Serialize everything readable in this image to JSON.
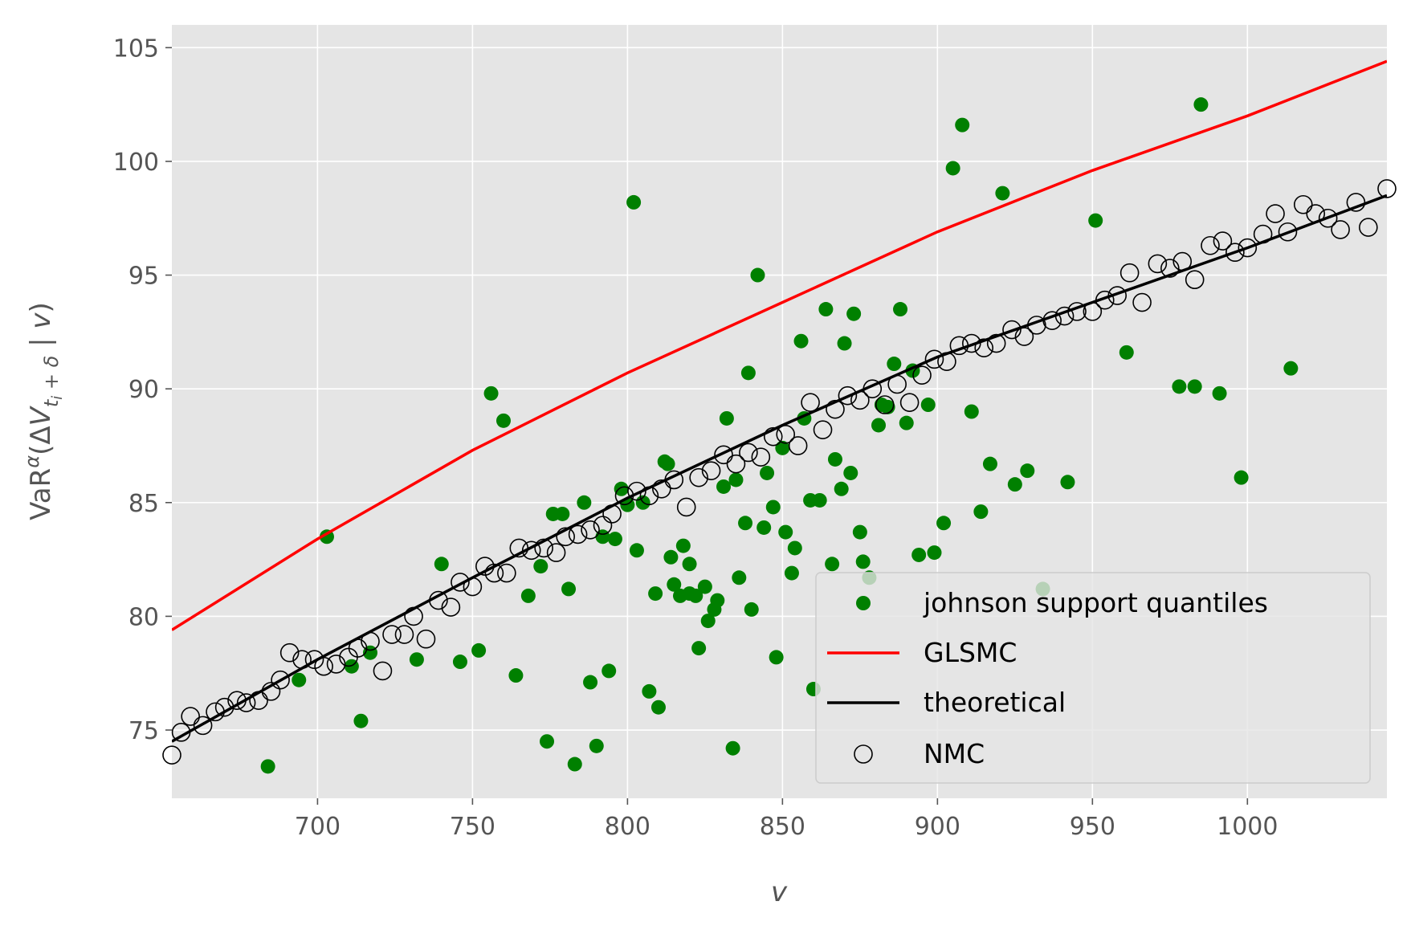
{
  "chart_data": {
    "type": "scatter",
    "xlabel": "v",
    "ylabel": "VaR^α(ΔV_{t_i+δ} | v)",
    "xlim": [
      653,
      1045
    ],
    "ylim": [
      72,
      106
    ],
    "xticks": [
      700,
      750,
      800,
      850,
      900,
      950,
      1000
    ],
    "yticks": [
      75,
      80,
      85,
      90,
      95,
      100,
      105
    ],
    "grid": true,
    "legend_position": "lower-right",
    "colors": {
      "background": "#e5e5e5",
      "johnson": "#008000",
      "glsmc": "#ff0000",
      "theoretical": "#000000",
      "nmc": "#000000"
    },
    "series": [
      {
        "name": "johnson support quantiles",
        "kind": "scatter-filled",
        "points": [
          [
            684,
            73.4
          ],
          [
            694,
            77.2
          ],
          [
            703,
            83.5
          ],
          [
            711,
            77.8
          ],
          [
            714,
            75.4
          ],
          [
            717,
            78.4
          ],
          [
            732,
            78.1
          ],
          [
            740,
            82.3
          ],
          [
            746,
            78.0
          ],
          [
            752,
            78.5
          ],
          [
            756,
            89.8
          ],
          [
            760,
            88.6
          ],
          [
            764,
            77.4
          ],
          [
            768,
            80.9
          ],
          [
            772,
            82.2
          ],
          [
            774,
            74.5
          ],
          [
            776,
            84.5
          ],
          [
            779,
            84.5
          ],
          [
            781,
            81.2
          ],
          [
            783,
            73.5
          ],
          [
            786,
            85.0
          ],
          [
            788,
            77.1
          ],
          [
            790,
            74.3
          ],
          [
            792,
            83.5
          ],
          [
            794,
            77.6
          ],
          [
            796,
            83.4
          ],
          [
            798,
            85.6
          ],
          [
            800,
            84.9
          ],
          [
            802,
            98.2
          ],
          [
            803,
            82.9
          ],
          [
            805,
            85.0
          ],
          [
            807,
            76.7
          ],
          [
            809,
            81.0
          ],
          [
            810,
            76.0
          ],
          [
            812,
            86.8
          ],
          [
            813,
            86.7
          ],
          [
            814,
            82.6
          ],
          [
            815,
            81.4
          ],
          [
            817,
            80.9
          ],
          [
            818,
            83.1
          ],
          [
            820,
            82.3
          ],
          [
            820,
            81.0
          ],
          [
            822,
            80.9
          ],
          [
            823,
            78.6
          ],
          [
            825,
            81.3
          ],
          [
            826,
            79.8
          ],
          [
            828,
            80.3
          ],
          [
            829,
            80.7
          ],
          [
            831,
            85.7
          ],
          [
            832,
            88.7
          ],
          [
            834,
            74.2
          ],
          [
            835,
            86.0
          ],
          [
            836,
            81.7
          ],
          [
            838,
            84.1
          ],
          [
            839,
            90.7
          ],
          [
            840,
            80.3
          ],
          [
            842,
            95.0
          ],
          [
            844,
            83.9
          ],
          [
            845,
            86.3
          ],
          [
            847,
            84.8
          ],
          [
            848,
            78.2
          ],
          [
            850,
            87.4
          ],
          [
            851,
            83.7
          ],
          [
            853,
            81.9
          ],
          [
            854,
            83.0
          ],
          [
            856,
            92.1
          ],
          [
            857,
            88.7
          ],
          [
            859,
            85.1
          ],
          [
            860,
            76.8
          ],
          [
            862,
            85.1
          ],
          [
            864,
            93.5
          ],
          [
            866,
            82.3
          ],
          [
            867,
            86.9
          ],
          [
            869,
            85.6
          ],
          [
            870,
            92.0
          ],
          [
            872,
            86.3
          ],
          [
            873,
            93.3
          ],
          [
            875,
            83.7
          ],
          [
            876,
            82.4
          ],
          [
            878,
            81.7
          ],
          [
            881,
            88.4
          ],
          [
            882,
            89.3
          ],
          [
            884,
            89.2
          ],
          [
            886,
            91.1
          ],
          [
            888,
            93.5
          ],
          [
            890,
            88.5
          ],
          [
            892,
            90.8
          ],
          [
            894,
            82.7
          ],
          [
            897,
            89.3
          ],
          [
            899,
            82.8
          ],
          [
            902,
            84.1
          ],
          [
            905,
            99.7
          ],
          [
            908,
            101.6
          ],
          [
            911,
            89.0
          ],
          [
            914,
            84.6
          ],
          [
            917,
            86.7
          ],
          [
            921,
            98.6
          ],
          [
            925,
            85.8
          ],
          [
            929,
            86.4
          ],
          [
            934,
            81.2
          ],
          [
            942,
            85.9
          ],
          [
            951,
            97.4
          ],
          [
            961,
            91.6
          ],
          [
            978,
            90.1
          ],
          [
            983,
            90.1
          ],
          [
            985,
            102.5
          ],
          [
            991,
            89.8
          ],
          [
            998,
            86.1
          ],
          [
            1014,
            90.9
          ]
        ]
      },
      {
        "name": "GLSMC",
        "kind": "line",
        "points": [
          [
            653,
            79.4
          ],
          [
            700,
            83.4
          ],
          [
            750,
            87.3
          ],
          [
            800,
            90.7
          ],
          [
            850,
            93.8
          ],
          [
            900,
            96.9
          ],
          [
            950,
            99.6
          ],
          [
            1000,
            102.0
          ],
          [
            1045,
            104.4
          ]
        ]
      },
      {
        "name": "theoretical",
        "kind": "line",
        "points": [
          [
            653,
            74.5
          ],
          [
            700,
            78.1
          ],
          [
            750,
            81.7
          ],
          [
            800,
            85.2
          ],
          [
            850,
            88.4
          ],
          [
            900,
            91.4
          ],
          [
            950,
            93.8
          ],
          [
            1000,
            96.2
          ],
          [
            1045,
            98.5
          ]
        ]
      },
      {
        "name": "NMC",
        "kind": "scatter-open",
        "points": [
          [
            653,
            73.9
          ],
          [
            656,
            74.9
          ],
          [
            659,
            75.6
          ],
          [
            663,
            75.2
          ],
          [
            667,
            75.8
          ],
          [
            670,
            76.0
          ],
          [
            674,
            76.3
          ],
          [
            677,
            76.2
          ],
          [
            681,
            76.3
          ],
          [
            685,
            76.7
          ],
          [
            688,
            77.2
          ],
          [
            691,
            78.4
          ],
          [
            695,
            78.1
          ],
          [
            699,
            78.1
          ],
          [
            702,
            77.8
          ],
          [
            706,
            77.9
          ],
          [
            710,
            78.2
          ],
          [
            713,
            78.6
          ],
          [
            717,
            78.9
          ],
          [
            721,
            77.6
          ],
          [
            724,
            79.2
          ],
          [
            728,
            79.2
          ],
          [
            731,
            80.0
          ],
          [
            735,
            79.0
          ],
          [
            739,
            80.7
          ],
          [
            743,
            80.4
          ],
          [
            746,
            81.5
          ],
          [
            750,
            81.3
          ],
          [
            754,
            82.2
          ],
          [
            757,
            81.9
          ],
          [
            761,
            81.9
          ],
          [
            765,
            83.0
          ],
          [
            769,
            82.9
          ],
          [
            773,
            83.0
          ],
          [
            777,
            82.8
          ],
          [
            780,
            83.5
          ],
          [
            784,
            83.6
          ],
          [
            788,
            83.8
          ],
          [
            792,
            84.0
          ],
          [
            795,
            84.5
          ],
          [
            799,
            85.3
          ],
          [
            803,
            85.5
          ],
          [
            807,
            85.3
          ],
          [
            811,
            85.6
          ],
          [
            815,
            86.0
          ],
          [
            819,
            84.8
          ],
          [
            823,
            86.1
          ],
          [
            827,
            86.4
          ],
          [
            831,
            87.1
          ],
          [
            835,
            86.7
          ],
          [
            839,
            87.2
          ],
          [
            843,
            87.0
          ],
          [
            847,
            87.9
          ],
          [
            851,
            88.0
          ],
          [
            855,
            87.5
          ],
          [
            859,
            89.4
          ],
          [
            863,
            88.2
          ],
          [
            867,
            89.1
          ],
          [
            871,
            89.7
          ],
          [
            875,
            89.5
          ],
          [
            879,
            90.0
          ],
          [
            883,
            89.3
          ],
          [
            887,
            90.2
          ],
          [
            891,
            89.4
          ],
          [
            895,
            90.6
          ],
          [
            899,
            91.3
          ],
          [
            903,
            91.2
          ],
          [
            907,
            91.9
          ],
          [
            911,
            92.0
          ],
          [
            915,
            91.8
          ],
          [
            919,
            92.0
          ],
          [
            924,
            92.6
          ],
          [
            928,
            92.3
          ],
          [
            932,
            92.8
          ],
          [
            937,
            93.0
          ],
          [
            941,
            93.2
          ],
          [
            945,
            93.4
          ],
          [
            950,
            93.4
          ],
          [
            954,
            93.9
          ],
          [
            958,
            94.1
          ],
          [
            962,
            95.1
          ],
          [
            966,
            93.8
          ],
          [
            971,
            95.5
          ],
          [
            975,
            95.3
          ],
          [
            979,
            95.6
          ],
          [
            983,
            94.8
          ],
          [
            988,
            96.3
          ],
          [
            992,
            96.5
          ],
          [
            996,
            96.0
          ],
          [
            1000,
            96.2
          ],
          [
            1005,
            96.8
          ],
          [
            1009,
            97.7
          ],
          [
            1013,
            96.9
          ],
          [
            1018,
            98.1
          ],
          [
            1022,
            97.7
          ],
          [
            1026,
            97.5
          ],
          [
            1030,
            97.0
          ],
          [
            1035,
            98.2
          ],
          [
            1039,
            97.1
          ],
          [
            1045,
            98.8
          ]
        ]
      }
    ]
  }
}
